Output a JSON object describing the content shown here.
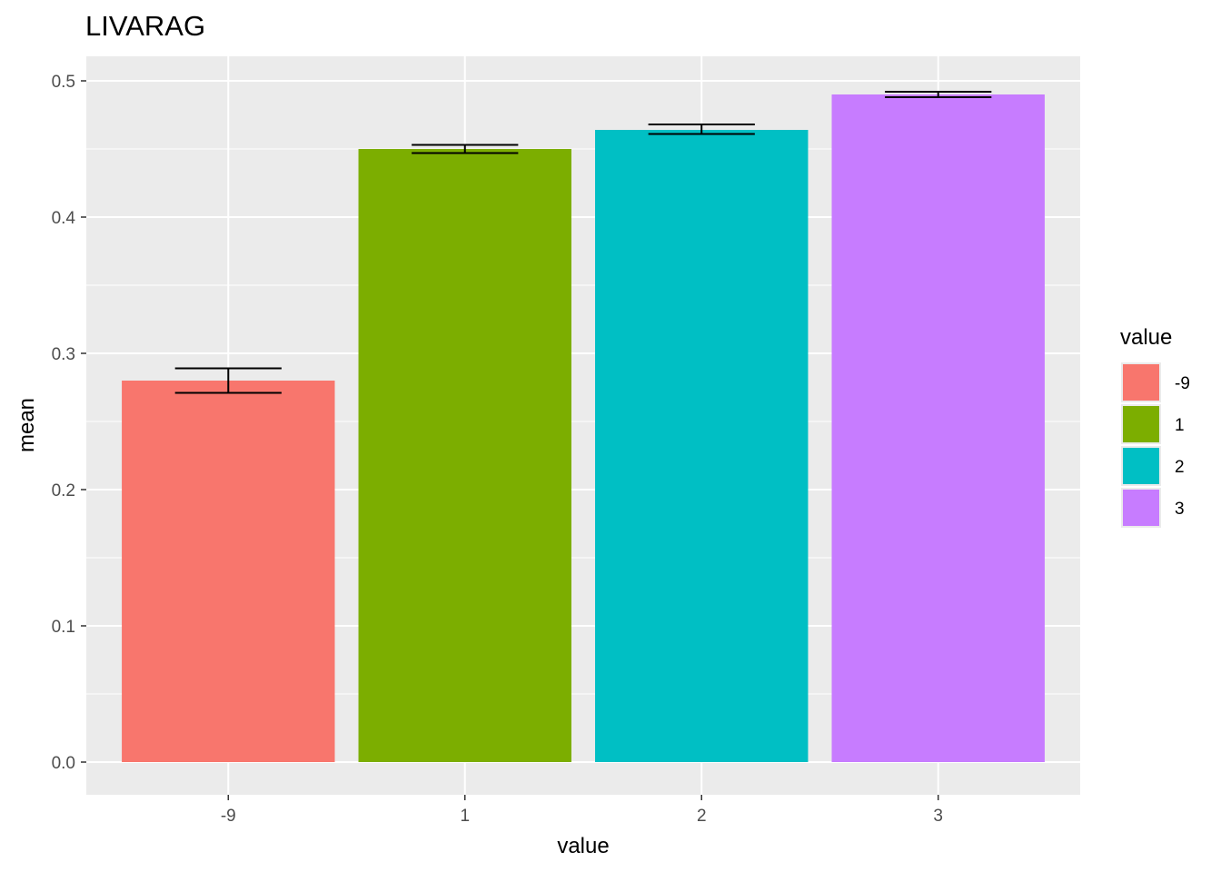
{
  "chart_data": {
    "type": "bar",
    "title": "LIVARAG",
    "xlabel": "value",
    "ylabel": "mean",
    "categories": [
      "-9",
      "1",
      "2",
      "3"
    ],
    "values": [
      0.28,
      0.45,
      0.464,
      0.49
    ],
    "error_low": [
      0.271,
      0.447,
      0.461,
      0.488
    ],
    "error_high": [
      0.289,
      0.453,
      0.468,
      0.492
    ],
    "colors": [
      "#F8766D",
      "#7CAE00",
      "#00BFC4",
      "#C77CFF"
    ],
    "ylim": [
      -0.024,
      0.518
    ],
    "yticks": [
      "0.0",
      "0.1",
      "0.2",
      "0.3",
      "0.4",
      "0.5"
    ],
    "grid": true,
    "legend": {
      "title": "value",
      "entries": [
        "-9",
        "1",
        "2",
        "3"
      ],
      "placement": "right"
    }
  }
}
